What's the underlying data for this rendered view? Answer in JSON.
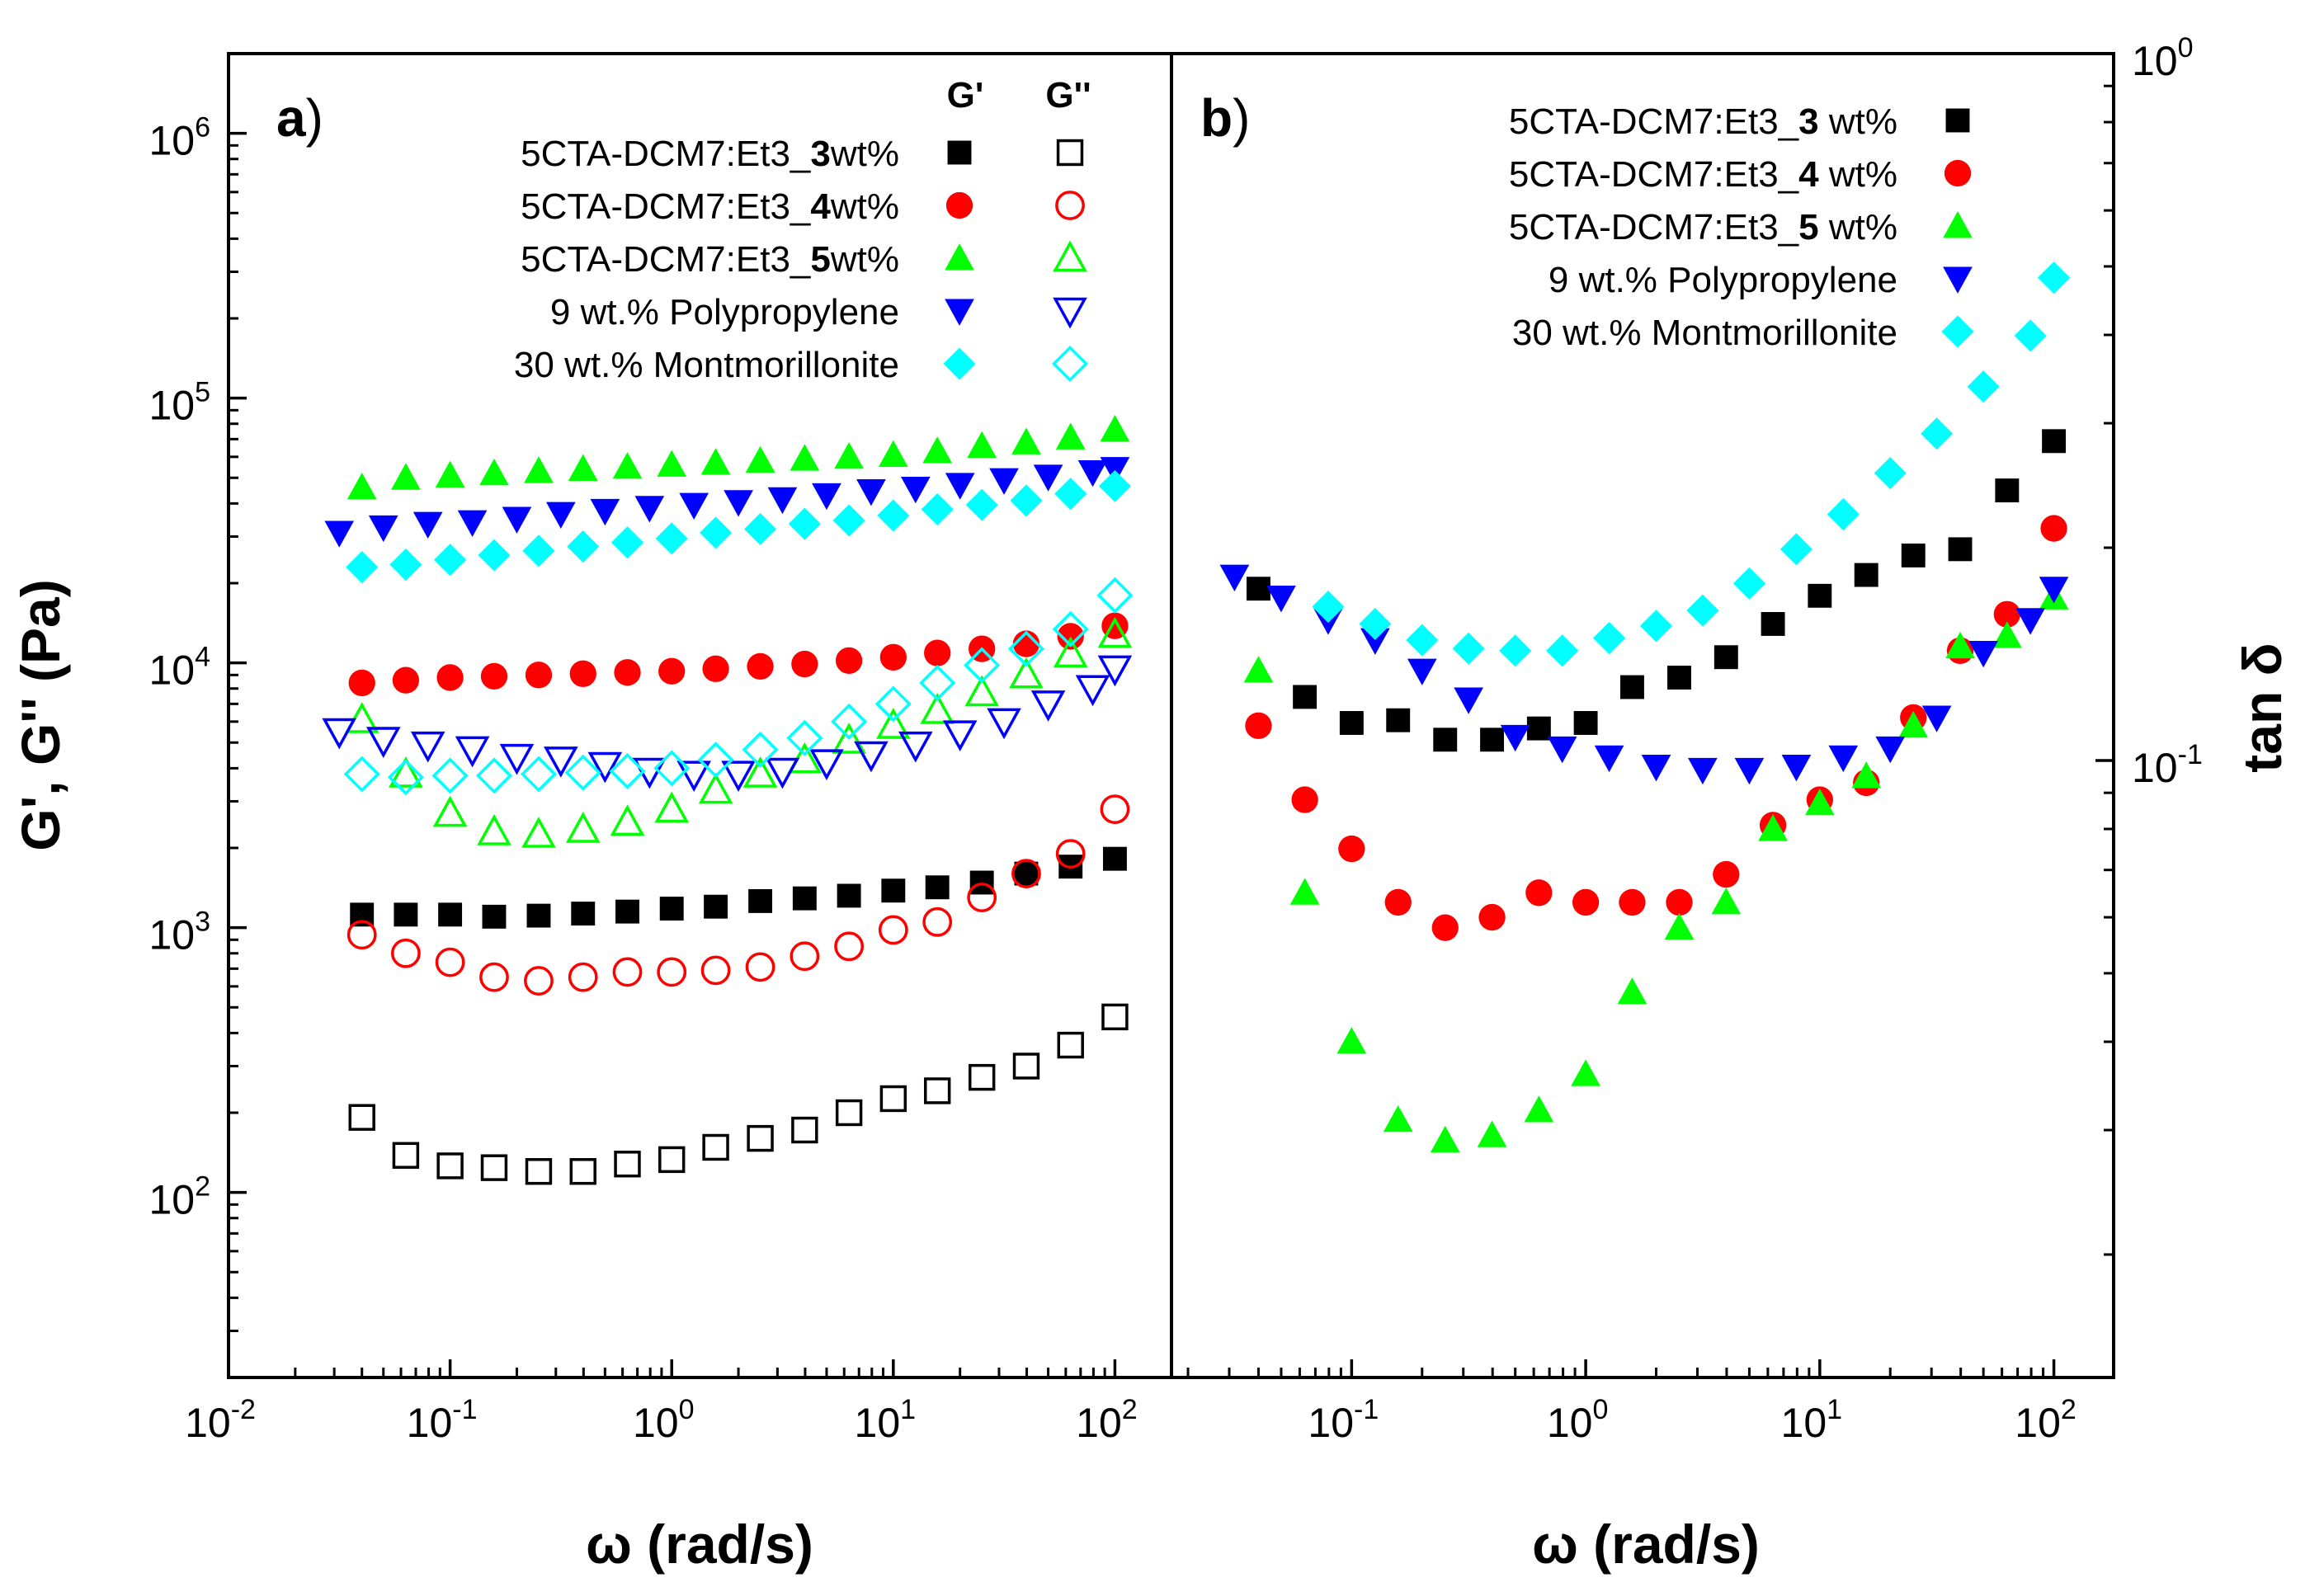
{
  "chart_data": [
    {
      "type": "scatter",
      "panel_label": "a",
      "xscale": "log",
      "yscale": "log",
      "xlim": [
        0.01,
        180
      ],
      "ylim": [
        20,
        2000000
      ],
      "xlabel": "ω (rad/s)",
      "ylabel": "G', G'' (Pa)",
      "x_ticks": [
        {
          "base": "10",
          "exp": "-2"
        },
        {
          "base": "10",
          "exp": "-1"
        },
        {
          "base": "10",
          "exp": "0"
        },
        {
          "base": "10",
          "exp": "1"
        },
        {
          "base": "10",
          "exp": "2"
        }
      ],
      "y_ticks": [
        {
          "base": "10",
          "exp": "2"
        },
        {
          "base": "10",
          "exp": "3"
        },
        {
          "base": "10",
          "exp": "4"
        },
        {
          "base": "10",
          "exp": "5"
        },
        {
          "base": "10",
          "exp": "6"
        }
      ],
      "legend_headers": {
        "storage": "G'",
        "loss": "G''"
      },
      "legend": [
        {
          "prefix": "5CTA-DCM7:Et3_",
          "bold": "3",
          "suffix": "wt%"
        },
        {
          "prefix": "5CTA-DCM7:Et3_",
          "bold": "4",
          "suffix": "wt%"
        },
        {
          "prefix": "5CTA-DCM7:Et3_",
          "bold": "5",
          "suffix": "wt%"
        },
        {
          "prefix": "9 wt.% Polypropylene",
          "bold": "",
          "suffix": ""
        },
        {
          "prefix": "30 wt.% Montmorillonite",
          "bold": "",
          "suffix": ""
        }
      ],
      "series": [
        {
          "name": "5CTA-DCM7:Et3_3wt% G'",
          "marker": "square",
          "color": "#000000",
          "filled": true,
          "x": [
            0.04,
            0.0631,
            0.1,
            0.158,
            0.251,
            0.398,
            0.631,
            1,
            1.58,
            2.51,
            3.98,
            6.31,
            10,
            15.8,
            25.1,
            39.8,
            63.1,
            100
          ],
          "y": [
            1120,
            1120,
            1120,
            1100,
            1110,
            1130,
            1150,
            1180,
            1200,
            1260,
            1290,
            1320,
            1380,
            1420,
            1480,
            1600,
            1700,
            1820
          ]
        },
        {
          "name": "5CTA-DCM7:Et3_3wt% G''",
          "marker": "square",
          "color": "#000000",
          "filled": false,
          "x": [
            0.04,
            0.0631,
            0.1,
            0.158,
            0.251,
            0.398,
            0.631,
            1,
            1.58,
            2.51,
            3.98,
            6.31,
            10,
            15.8,
            25.1,
            39.8,
            63.1,
            100
          ],
          "y": [
            192,
            138,
            126,
            124,
            120,
            120,
            128,
            133,
            148,
            160,
            172,
            200,
            226,
            242,
            272,
            300,
            360,
            460
          ]
        },
        {
          "name": "5CTA-DCM7:Et3_4wt% G'",
          "marker": "circle",
          "color": "#ff0000",
          "filled": true,
          "x": [
            0.04,
            0.0631,
            0.1,
            0.158,
            0.251,
            0.398,
            0.631,
            1,
            1.58,
            2.51,
            3.98,
            6.31,
            10,
            15.8,
            25.1,
            39.8,
            63.1,
            100
          ],
          "y": [
            8400,
            8600,
            8800,
            8900,
            9000,
            9100,
            9200,
            9300,
            9500,
            9700,
            9900,
            10200,
            10500,
            10900,
            11300,
            11800,
            12600,
            13800
          ]
        },
        {
          "name": "5CTA-DCM7:Et3_4wt% G''",
          "marker": "circle",
          "color": "#ff0000",
          "filled": false,
          "x": [
            0.04,
            0.0631,
            0.1,
            0.158,
            0.251,
            0.398,
            0.631,
            1,
            1.58,
            2.51,
            3.98,
            6.31,
            10,
            15.8,
            25.1,
            39.8,
            63.1,
            100
          ],
          "y": [
            940,
            800,
            740,
            650,
            630,
            650,
            680,
            680,
            690,
            710,
            780,
            850,
            980,
            1050,
            1300,
            1600,
            1900,
            2800
          ]
        },
        {
          "name": "5CTA-DCM7:Et3_5wt% G'",
          "marker": "triangle-up",
          "color": "#00ff00",
          "filled": true,
          "x": [
            0.04,
            0.0631,
            0.1,
            0.158,
            0.251,
            0.398,
            0.631,
            1,
            1.58,
            2.51,
            3.98,
            6.31,
            10,
            15.8,
            25.1,
            39.8,
            63.1,
            100
          ],
          "y": [
            46000,
            50000,
            51000,
            52000,
            53000,
            54000,
            55000,
            56000,
            57000,
            58000,
            59000,
            60000,
            61000,
            63000,
            66000,
            68000,
            71000,
            76000
          ]
        },
        {
          "name": "5CTA-DCM7:Et3_5wt% G''",
          "marker": "triangle-up",
          "color": "#00ff00",
          "filled": false,
          "x": [
            0.04,
            0.0631,
            0.1,
            0.158,
            0.251,
            0.398,
            0.631,
            1,
            1.58,
            2.51,
            3.98,
            6.31,
            10,
            15.8,
            25.1,
            39.8,
            63.1,
            100
          ],
          "y": [
            6100,
            3800,
            2700,
            2300,
            2250,
            2350,
            2500,
            2800,
            3300,
            3800,
            4300,
            5100,
            5800,
            6600,
            7700,
            9000,
            10800,
            12800
          ]
        },
        {
          "name": "9 wt.% Polypropylene G'",
          "marker": "triangle-down",
          "color": "#0000ff",
          "filled": true,
          "x": [
            0.0316,
            0.05,
            0.0794,
            0.126,
            0.2,
            0.316,
            0.5,
            0.794,
            1.26,
            2,
            3.16,
            5,
            7.94,
            12.6,
            20,
            31.6,
            50,
            79.4,
            100
          ],
          "y": [
            31000,
            32500,
            33500,
            34000,
            35000,
            36500,
            37500,
            38500,
            39500,
            40500,
            41500,
            43000,
            44500,
            45500,
            47000,
            49000,
            50500,
            52500,
            54000
          ]
        },
        {
          "name": "9 wt.% Polypropylene G''",
          "marker": "triangle-down",
          "color": "#0000ff",
          "filled": false,
          "x": [
            0.0316,
            0.05,
            0.0794,
            0.126,
            0.2,
            0.316,
            0.5,
            0.794,
            1.26,
            2,
            3.16,
            5,
            7.94,
            12.6,
            20,
            31.6,
            50,
            79.4,
            100
          ],
          "y": [
            5500,
            5100,
            4900,
            4700,
            4400,
            4300,
            4100,
            3900,
            3800,
            3800,
            3900,
            4200,
            4500,
            4900,
            5400,
            6000,
            7000,
            8000,
            9500
          ]
        },
        {
          "name": "30 wt.% Montmorillonite G'",
          "marker": "diamond",
          "color": "#00ffff",
          "filled": true,
          "x": [
            0.04,
            0.0631,
            0.1,
            0.158,
            0.251,
            0.398,
            0.631,
            1,
            1.58,
            2.51,
            3.98,
            6.31,
            10,
            15.8,
            25.1,
            39.8,
            63.1,
            100
          ],
          "y": [
            23000,
            23500,
            24500,
            25500,
            26500,
            27500,
            28500,
            29500,
            31000,
            32000,
            33500,
            34500,
            36000,
            38000,
            39500,
            41000,
            43500,
            46500
          ]
        },
        {
          "name": "30 wt.% Montmorillonite G''",
          "marker": "diamond",
          "color": "#00ffff",
          "filled": false,
          "x": [
            0.04,
            0.0631,
            0.1,
            0.158,
            0.251,
            0.398,
            0.631,
            1,
            1.58,
            2.51,
            3.98,
            6.31,
            10,
            15.8,
            25.1,
            39.8,
            63.1,
            100
          ],
          "y": [
            3800,
            3700,
            3750,
            3750,
            3800,
            3850,
            3900,
            4000,
            4300,
            4700,
            5200,
            6000,
            7000,
            8400,
            9800,
            11300,
            13400,
            18000
          ]
        }
      ]
    },
    {
      "type": "scatter",
      "panel_label": "b",
      "xscale": "log",
      "yscale": "log",
      "xlim": [
        0.017,
        180
      ],
      "ylim": [
        0.0134,
        1
      ],
      "xlabel": "ω (rad/s)",
      "ylabel": "tan δ",
      "x_ticks": [
        {
          "base": "10",
          "exp": "-1"
        },
        {
          "base": "10",
          "exp": "0"
        },
        {
          "base": "10",
          "exp": "1"
        },
        {
          "base": "10",
          "exp": "2"
        }
      ],
      "y_ticks": [
        {
          "base": "10",
          "exp": "-1"
        },
        {
          "base": "10",
          "exp": "0"
        }
      ],
      "legend": [
        {
          "prefix": "5CTA-DCM7:Et3_",
          "bold": "3",
          "suffix": " wt%"
        },
        {
          "prefix": "5CTA-DCM7:Et3_",
          "bold": "4",
          "suffix": " wt%"
        },
        {
          "prefix": "5CTA-DCM7:Et3_",
          "bold": "5",
          "suffix": " wt%"
        },
        {
          "prefix": "9 wt.% Polypropylene",
          "bold": "",
          "suffix": ""
        },
        {
          "prefix": "30 wt.% Montmorillonite",
          "bold": "",
          "suffix": ""
        }
      ],
      "series": [
        {
          "name": "5CTA-DCM7:Et3_3 wt%",
          "marker": "square",
          "color": "#000000",
          "filled": true,
          "x": [
            0.04,
            0.0631,
            0.1,
            0.158,
            0.251,
            0.398,
            0.631,
            1,
            1.58,
            2.51,
            3.98,
            6.31,
            10,
            15.8,
            25.1,
            39.8,
            63.1,
            100
          ],
          "y": [
            0.175,
            0.123,
            0.113,
            0.114,
            0.107,
            0.107,
            0.111,
            0.113,
            0.127,
            0.131,
            0.14,
            0.156,
            0.171,
            0.183,
            0.195,
            0.199,
            0.241,
            0.283
          ]
        },
        {
          "name": "5CTA-DCM7:Et3_4 wt%",
          "marker": "circle",
          "color": "#ff0000",
          "filled": true,
          "x": [
            0.04,
            0.0631,
            0.1,
            0.158,
            0.251,
            0.398,
            0.631,
            1,
            1.58,
            2.51,
            3.98,
            6.31,
            10,
            15.8,
            25.1,
            39.8,
            63.1,
            100
          ],
          "y": [
            0.112,
            0.088,
            0.075,
            0.063,
            0.058,
            0.06,
            0.065,
            0.063,
            0.063,
            0.063,
            0.069,
            0.081,
            0.088,
            0.093,
            0.115,
            0.143,
            0.161,
            0.213
          ]
        },
        {
          "name": "5CTA-DCM7:Et3_5 wt%",
          "marker": "triangle-up",
          "color": "#00ff00",
          "filled": true,
          "x": [
            0.04,
            0.0631,
            0.1,
            0.158,
            0.251,
            0.398,
            0.631,
            1,
            1.58,
            2.51,
            3.98,
            6.31,
            10,
            15.8,
            25.1,
            39.8,
            63.1,
            100
          ],
          "y": [
            0.134,
            0.065,
            0.04,
            0.031,
            0.029,
            0.0295,
            0.032,
            0.036,
            0.047,
            0.058,
            0.063,
            0.08,
            0.087,
            0.095,
            0.112,
            0.145,
            0.15,
            0.17
          ]
        },
        {
          "name": "9 wt.% Polypropylene",
          "marker": "triangle-down",
          "color": "#0000ff",
          "filled": true,
          "x": [
            0.0316,
            0.05,
            0.0794,
            0.126,
            0.2,
            0.316,
            0.5,
            0.794,
            1.26,
            2,
            3.16,
            5,
            7.94,
            12.6,
            20,
            31.6,
            50,
            79.4,
            100
          ],
          "y": [
            0.182,
            0.17,
            0.158,
            0.148,
            0.134,
            0.122,
            0.108,
            0.104,
            0.101,
            0.098,
            0.097,
            0.097,
            0.098,
            0.101,
            0.104,
            0.115,
            0.142,
            0.158,
            0.175
          ]
        },
        {
          "name": "30 wt.% Montmorillonite",
          "marker": "diamond",
          "color": "#00ffff",
          "filled": true,
          "x": [
            0.0794,
            0.126,
            0.2,
            0.316,
            0.5,
            0.794,
            1.26,
            2,
            3.16,
            5,
            7.94,
            12.6,
            20,
            31.6,
            50,
            79.4,
            100
          ],
          "y": [
            0.165,
            0.156,
            0.148,
            0.144,
            0.143,
            0.143,
            0.149,
            0.155,
            0.163,
            0.178,
            0.199,
            0.223,
            0.255,
            0.29,
            0.338,
            0.399,
            0.482
          ]
        }
      ]
    }
  ]
}
